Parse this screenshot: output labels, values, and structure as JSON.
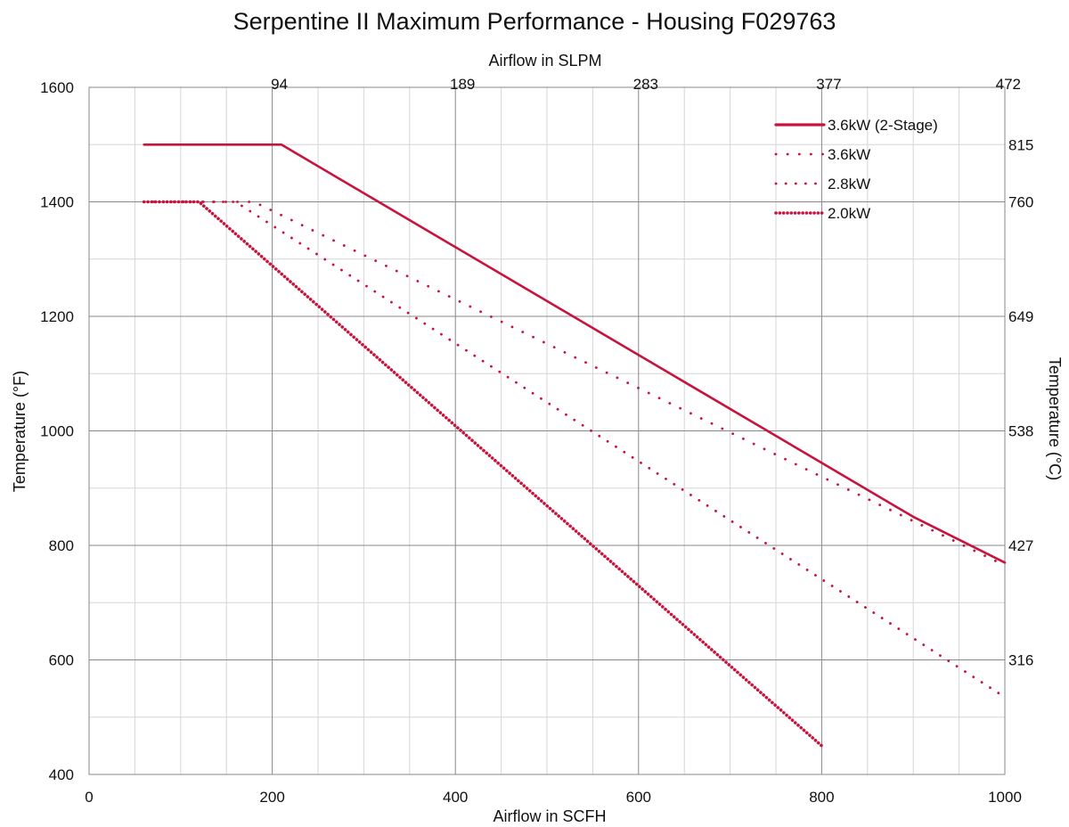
{
  "chart_data": {
    "type": "line",
    "title": "Serpentine II Maximum Performance - Housing F029763",
    "xlabel": "Airflow in SCFH",
    "ylabel": "Temperature (°F)",
    "x2label": "Airflow in SLPM",
    "y2label": "Temperature (°C)",
    "xlim": [
      0,
      1000
    ],
    "ylim": [
      400,
      1600
    ],
    "x_ticks": [
      "0",
      "200",
      "400",
      "600",
      "800",
      "1000"
    ],
    "y_ticks": [
      "400",
      "600",
      "800",
      "1000",
      "1200",
      "1400",
      "1600"
    ],
    "x2_ticks": [
      {
        "at": 200,
        "label": "94"
      },
      {
        "at": 400,
        "label": "189"
      },
      {
        "at": 600,
        "label": "283"
      },
      {
        "at": 800,
        "label": "377"
      },
      {
        "at": 1000,
        "label": "472"
      }
    ],
    "y2_ticks": [
      {
        "at": 1500,
        "label": "815"
      },
      {
        "at": 1400,
        "label": "760"
      },
      {
        "at": 1200,
        "label": "649"
      },
      {
        "at": 1000,
        "label": "538"
      },
      {
        "at": 800,
        "label": "427"
      },
      {
        "at": 600,
        "label": "316"
      }
    ],
    "grid": true,
    "legend_position": "top-right",
    "series_color": "#c8143c",
    "series": [
      {
        "name": "3.6kW (2-Stage)",
        "style": "solid",
        "x": [
          60,
          210,
          900,
          1000
        ],
        "y": [
          1500,
          1500,
          850,
          770
        ]
      },
      {
        "name": "3.6kW",
        "style": "dotted-sparse",
        "x": [
          60,
          180,
          1000
        ],
        "y": [
          1400,
          1400,
          765
        ]
      },
      {
        "name": "2.8kW",
        "style": "dotted-medium",
        "x": [
          60,
          160,
          1000
        ],
        "y": [
          1400,
          1400,
          535
        ]
      },
      {
        "name": "2.0kW",
        "style": "dotted-dense",
        "x": [
          60,
          120,
          800
        ],
        "y": [
          1400,
          1400,
          450
        ]
      }
    ]
  }
}
